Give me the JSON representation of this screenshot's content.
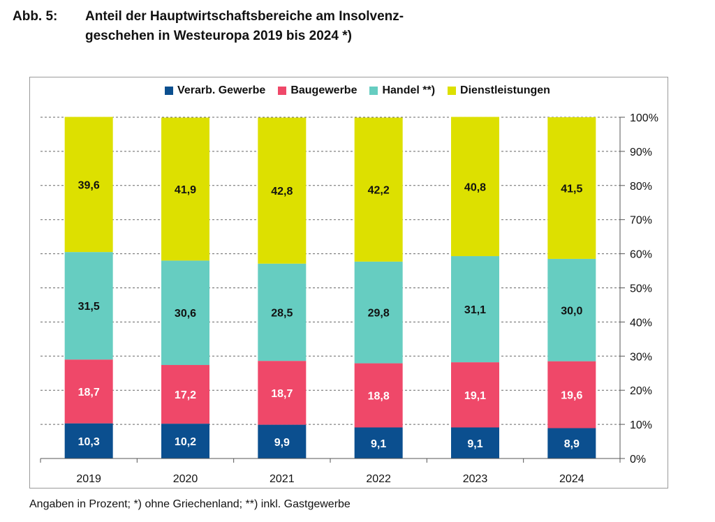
{
  "figure": {
    "label": "Abb. 5:",
    "title_line1": "Anteil der Hauptwirtschaftsbereiche am Insolvenz-",
    "title_line2": "geschehen in Westeuropa 2019 bis 2024 *)",
    "footnote": "Angaben in Prozent; *) ohne Griechenland; **) inkl. Gastgewerbe"
  },
  "chart_data": {
    "type": "bar",
    "stacked": true,
    "categories": [
      "2019",
      "2020",
      "2021",
      "2022",
      "2023",
      "2024"
    ],
    "series": [
      {
        "name": "Verarb. Gewerbe",
        "color": "#0b4f8f",
        "label_color": "#ffffff",
        "values": [
          10.3,
          10.2,
          9.9,
          9.1,
          9.1,
          8.9
        ],
        "labels": [
          "10,3",
          "10,2",
          "9,9",
          "9,1",
          "9,1",
          "8,9"
        ]
      },
      {
        "name": "Baugewerbe",
        "color": "#ef4869",
        "label_color": "#ffffff",
        "values": [
          18.7,
          17.2,
          18.7,
          18.8,
          19.1,
          19.6
        ],
        "labels": [
          "18,7",
          "17,2",
          "18,7",
          "18,8",
          "19,1",
          "19,6"
        ]
      },
      {
        "name": "Handel **)",
        "color": "#66cdc1",
        "label_color": "#111111",
        "values": [
          31.5,
          30.6,
          28.5,
          29.8,
          31.1,
          30.0
        ],
        "labels": [
          "31,5",
          "30,6",
          "28,5",
          "29,8",
          "31,1",
          "30,0"
        ]
      },
      {
        "name": "Dienstleistungen",
        "color": "#dde000",
        "label_color": "#111111",
        "values": [
          39.6,
          41.9,
          42.8,
          42.2,
          40.8,
          41.5
        ],
        "labels": [
          "39,6",
          "41,9",
          "42,8",
          "42,2",
          "40,8",
          "41,5"
        ]
      }
    ],
    "ylim": [
      0,
      100
    ],
    "yticks": [
      "0%",
      "10%",
      "20%",
      "30%",
      "40%",
      "50%",
      "60%",
      "70%",
      "80%",
      "90%",
      "100%"
    ],
    "y_axis_side": "right",
    "grid": "horizontal dashed",
    "legend_position": "top"
  }
}
